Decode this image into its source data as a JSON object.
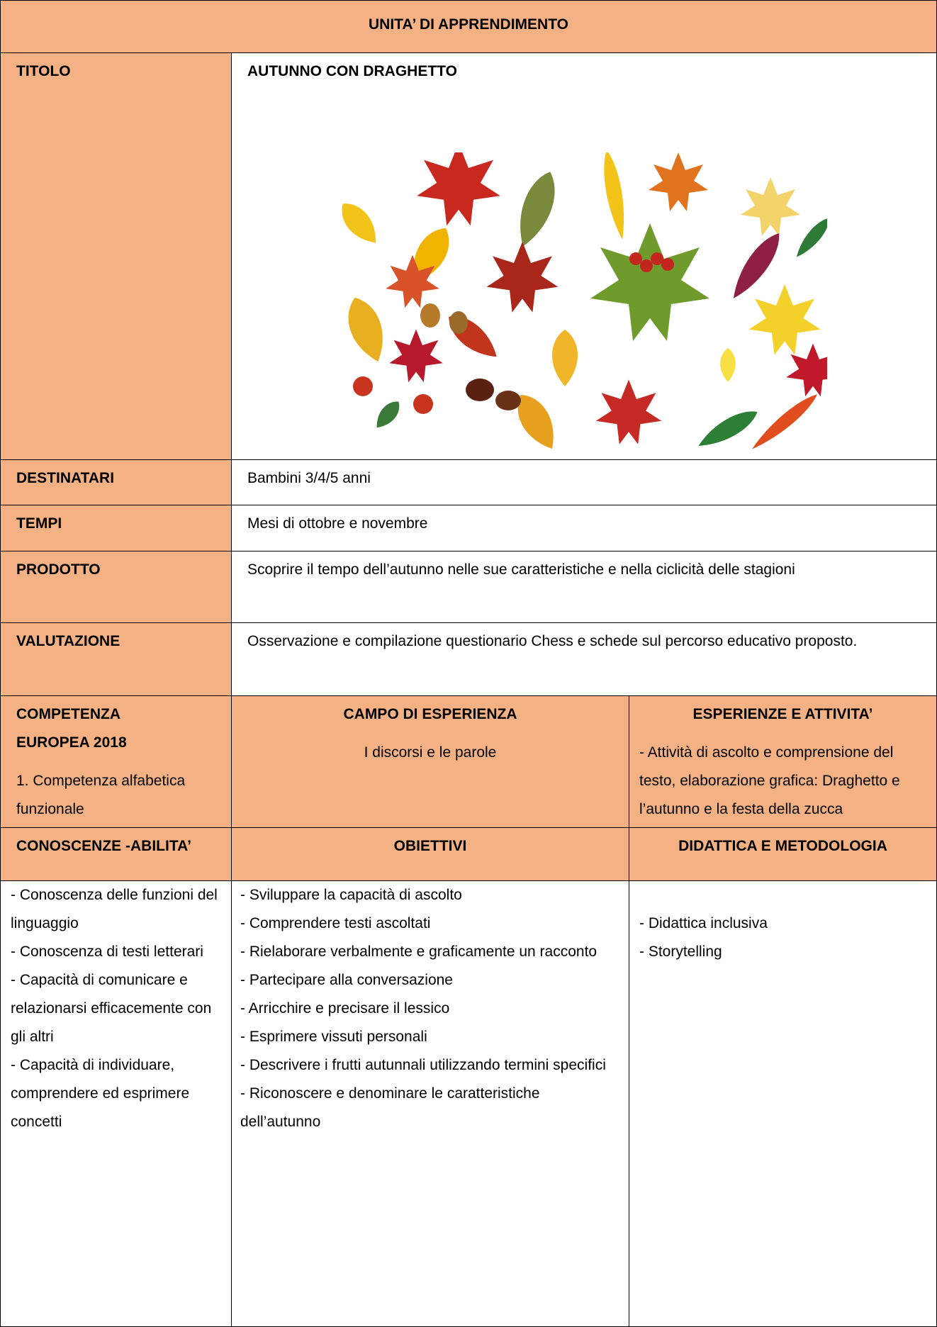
{
  "header": {
    "title": "UNITA’ DI APPRENDIMENTO"
  },
  "info_rows": [
    {
      "label": "TITOLO",
      "value": "AUTUNNO CON DRAGHETTO"
    },
    {
      "label": "DESTINATARI",
      "value": "Bambini 3/4/5 anni"
    },
    {
      "label": "TEMPI",
      "value": "Mesi di ottobre e novembre"
    },
    {
      "label": "PRODOTTO",
      "value": "Scoprire il tempo dell’autunno nelle sue caratteristiche e nella ciclicità delle stagioni"
    },
    {
      "label": "VALUTAZIONE",
      "value": "Osservazione e compilazione questionario Chess e schede sul percorso educativo proposto."
    }
  ],
  "competenza": {
    "label": "COMPETENZA EUROPEA 2018",
    "text": "1. Competenza alfabetica funzionale"
  },
  "campo": {
    "label": "CAMPO DI ESPERIENZA",
    "text": "I discorsi e le parole"
  },
  "esperienze": {
    "label": "ESPERIENZE E ATTIVITA’",
    "text": "-  Attività di ascolto e comprensione del testo, elaborazione grafica: Draghetto e l’autunno e la festa della zucca"
  },
  "conoscenze": {
    "label": "CONOSCENZE -ABILITA’",
    "items": [
      "- Conoscenza delle funzioni del linguaggio",
      "- Conoscenza di testi letterari",
      "- Capacità di comunicare e relazionarsi efficacemente con gli altri",
      "- Capacità di individuare, comprendere ed esprimere concetti"
    ]
  },
  "obiettivi": {
    "label": "OBIETTIVI",
    "items": [
      "- Sviluppare la capacità di ascolto",
      "- Comprendere testi ascoltati",
      "- Rielaborare verbalmente e graficamente un racconto",
      "- Partecipare alla conversazione",
      "- Arricchire e precisare il lessico",
      "- Esprimere vissuti personali",
      "- Descrivere i frutti autunnali utilizzando termini specifici",
      "- Riconoscere e denominare le caratteristiche dell’autunno"
    ]
  },
  "didattica": {
    "label": "DIDATTICA E METODOLOGIA",
    "items": [
      "- Didattica inclusiva",
      "- Storytelling"
    ]
  }
}
